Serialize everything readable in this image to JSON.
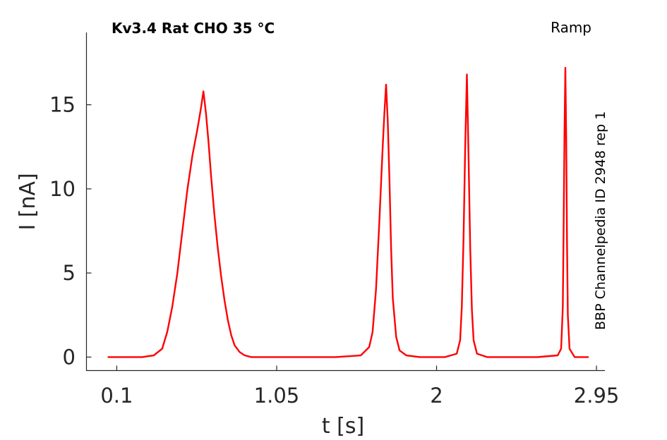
{
  "chart_data": {
    "type": "line",
    "title": "Kv3.4  Rat  CHO  35 °C",
    "protocol_label": "Ramp",
    "side_label": "BBP Channelpedia ID 2948 rep 1",
    "xlabel": "t [s]",
    "ylabel": "I [nA]",
    "xlim": [
      -0.08,
      3.0
    ],
    "ylim": [
      -0.8,
      19.3
    ],
    "xticks": [
      0.1,
      1.05,
      2,
      2.95
    ],
    "xtick_labels": [
      "0.1",
      "1.05",
      "2",
      "2.95"
    ],
    "yticks": [
      0,
      5,
      10,
      15
    ],
    "ytick_labels": [
      "0",
      "5",
      "10",
      "15"
    ],
    "grid": false,
    "series": [
      {
        "color": "#ff0000",
        "x": [
          0.05,
          0.25,
          0.32,
          0.37,
          0.4,
          0.43,
          0.46,
          0.49,
          0.52,
          0.55,
          0.58,
          0.6,
          0.615,
          0.63,
          0.645,
          0.66,
          0.68,
          0.7,
          0.72,
          0.74,
          0.76,
          0.78,
          0.8,
          0.83,
          0.86,
          0.9,
          0.95,
          1.05,
          1.4,
          1.55,
          1.6,
          1.62,
          1.64,
          1.66,
          1.68,
          1.69,
          1.7,
          1.71,
          1.72,
          1.73,
          1.74,
          1.76,
          1.78,
          1.82,
          1.9,
          2.05,
          2.12,
          2.14,
          2.15,
          2.16,
          2.17,
          2.18,
          2.19,
          2.2,
          2.21,
          2.22,
          2.24,
          2.3,
          2.6,
          2.72,
          2.74,
          2.75,
          2.755,
          2.76,
          2.765,
          2.77,
          2.775,
          2.78,
          2.79,
          2.82,
          2.9
        ],
        "y": [
          0.0,
          0.0,
          0.1,
          0.5,
          1.5,
          3.0,
          5.0,
          7.5,
          10.0,
          12.0,
          13.6,
          14.8,
          15.8,
          14.5,
          12.8,
          10.8,
          8.5,
          6.5,
          4.8,
          3.4,
          2.2,
          1.3,
          0.7,
          0.3,
          0.1,
          0.0,
          0.0,
          0.0,
          0.0,
          0.1,
          0.6,
          1.5,
          4.0,
          8.0,
          12.5,
          14.5,
          16.2,
          14.0,
          10.5,
          6.5,
          3.5,
          1.2,
          0.4,
          0.1,
          0.0,
          0.0,
          0.2,
          1.0,
          3.0,
          7.0,
          12.5,
          16.8,
          12.0,
          6.5,
          2.8,
          1.0,
          0.2,
          0.0,
          0.0,
          0.1,
          0.5,
          3.0,
          8.0,
          13.5,
          17.2,
          13.0,
          7.0,
          2.5,
          0.5,
          0.0,
          0.0
        ]
      }
    ]
  }
}
